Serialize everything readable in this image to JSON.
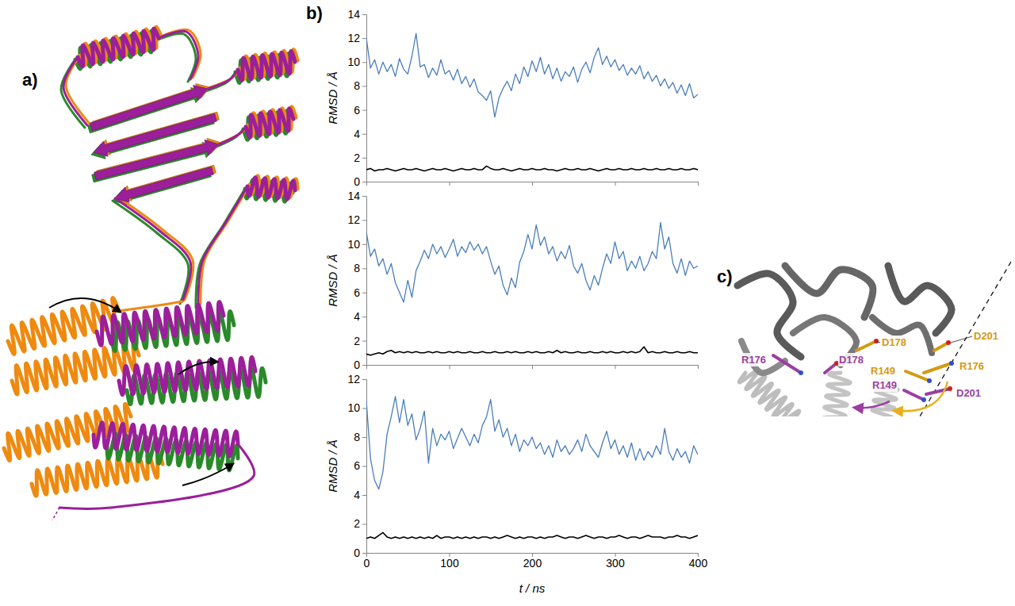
{
  "chart_data": [
    {
      "type": "line",
      "ylabel": "RMSD / Å",
      "x": [
        0,
        5,
        10,
        15,
        20,
        25,
        30,
        35,
        40,
        45,
        50,
        55,
        60,
        65,
        70,
        75,
        80,
        85,
        90,
        95,
        100,
        105,
        110,
        115,
        120,
        125,
        130,
        135,
        140,
        145,
        150,
        155,
        160,
        165,
        170,
        175,
        180,
        185,
        190,
        195,
        200,
        205,
        210,
        215,
        220,
        225,
        230,
        235,
        240,
        245,
        250,
        255,
        260,
        265,
        270,
        275,
        280,
        285,
        290,
        295,
        300,
        305,
        310,
        315,
        320,
        325,
        330,
        335,
        340,
        345,
        350,
        355,
        360,
        365,
        370,
        375,
        380,
        385,
        390,
        395,
        400
      ],
      "xlim": [
        0,
        400
      ],
      "xticks": [
        0,
        100,
        200,
        300,
        400
      ],
      "ylim": [
        0,
        14
      ],
      "yticks": [
        0,
        2,
        4,
        6,
        8,
        10,
        12,
        14
      ],
      "tick_labels": "y",
      "series": [
        {
          "color": "#4a7ebb",
          "values": [
            12,
            9.5,
            10.2,
            9.0,
            10.0,
            9.2,
            9.8,
            8.8,
            10.3,
            9.4,
            9.0,
            10.5,
            12.4,
            9.6,
            9.8,
            8.7,
            9.5,
            8.9,
            10.2,
            9.0,
            9.3,
            8.5,
            9.4,
            8.2,
            8.8,
            7.9,
            8.6,
            7.5,
            7.2,
            6.8,
            7.6,
            5.4,
            7.0,
            7.8,
            8.4,
            7.6,
            9.0,
            8.2,
            9.6,
            8.8,
            10.1,
            9.2,
            10.4,
            9.0,
            9.8,
            8.6,
            9.5,
            8.4,
            9.2,
            8.8,
            9.6,
            8.3,
            9.4,
            10.0,
            9.1,
            10.4,
            11.2,
            9.8,
            10.5,
            9.6,
            10.2,
            9.3,
            9.8,
            8.9,
            9.5,
            9.0,
            9.7,
            8.6,
            9.2,
            8.4,
            8.9,
            8.0,
            8.6,
            7.8,
            8.3,
            7.4,
            8.1,
            7.2,
            8.2,
            7.0,
            7.3
          ]
        },
        {
          "color": "#000000",
          "values": [
            1.0,
            1.1,
            0.9,
            1.0,
            1.0,
            1.1,
            1.0,
            0.9,
            1.0,
            1.1,
            1.0,
            1.0,
            1.1,
            1.0,
            0.9,
            1.0,
            1.1,
            1.0,
            1.0,
            1.1,
            1.0,
            0.9,
            1.0,
            1.1,
            1.0,
            1.0,
            1.1,
            1.0,
            1.0,
            1.3,
            1.1,
            1.0,
            1.0,
            1.1,
            1.0,
            0.9,
            1.0,
            1.1,
            1.0,
            1.0,
            1.1,
            1.0,
            1.0,
            1.1,
            1.0,
            1.0,
            0.9,
            1.0,
            1.1,
            1.0,
            1.0,
            1.1,
            1.0,
            1.0,
            1.1,
            1.0,
            0.9,
            1.0,
            1.1,
            1.0,
            1.0,
            1.1,
            1.0,
            1.0,
            1.1,
            1.0,
            1.0,
            1.1,
            1.0,
            1.0,
            1.1,
            1.0,
            1.0,
            1.1,
            1.0,
            1.0,
            1.1,
            1.0,
            1.0,
            1.1,
            1.0
          ]
        }
      ]
    },
    {
      "type": "line",
      "ylabel": "RMSD / Å",
      "x": [
        0,
        5,
        10,
        15,
        20,
        25,
        30,
        35,
        40,
        45,
        50,
        55,
        60,
        65,
        70,
        75,
        80,
        85,
        90,
        95,
        100,
        105,
        110,
        115,
        120,
        125,
        130,
        135,
        140,
        145,
        150,
        155,
        160,
        165,
        170,
        175,
        180,
        185,
        190,
        195,
        200,
        205,
        210,
        215,
        220,
        225,
        230,
        235,
        240,
        245,
        250,
        255,
        260,
        265,
        270,
        275,
        280,
        285,
        290,
        295,
        300,
        305,
        310,
        315,
        320,
        325,
        330,
        335,
        340,
        345,
        350,
        355,
        360,
        365,
        370,
        375,
        380,
        385,
        390,
        395,
        400
      ],
      "xlim": [
        0,
        400
      ],
      "xticks": [
        0,
        100,
        200,
        300,
        400
      ],
      "ylim": [
        0,
        14
      ],
      "yticks": [
        0,
        2,
        4,
        6,
        8,
        10,
        12,
        14
      ],
      "tick_labels": "y",
      "series": [
        {
          "color": "#4a7ebb",
          "values": [
            11.0,
            9.0,
            9.6,
            8.2,
            8.8,
            7.5,
            8.4,
            6.8,
            6.0,
            5.2,
            7.0,
            5.6,
            7.8,
            8.6,
            9.5,
            8.8,
            10.0,
            9.2,
            9.8,
            8.9,
            9.6,
            10.4,
            9.0,
            9.8,
            9.3,
            10.2,
            9.5,
            10.0,
            9.2,
            9.8,
            8.6,
            7.5,
            8.2,
            6.6,
            5.8,
            7.2,
            6.4,
            8.5,
            9.4,
            10.8,
            9.6,
            11.6,
            9.9,
            10.6,
            9.2,
            9.8,
            8.6,
            9.4,
            8.8,
            9.9,
            8.2,
            7.6,
            8.4,
            7.0,
            6.2,
            7.4,
            6.6,
            8.0,
            9.2,
            8.4,
            10.2,
            8.8,
            9.4,
            7.8,
            8.6,
            8.0,
            9.0,
            7.8,
            8.4,
            9.4,
            8.8,
            11.8,
            9.6,
            10.6,
            8.4,
            7.6,
            8.8,
            7.4,
            8.6,
            8.0,
            8.2
          ]
        },
        {
          "color": "#000000",
          "values": [
            0.9,
            0.8,
            0.9,
            1.0,
            0.9,
            1.1,
            1.2,
            1.0,
            1.1,
            1.0,
            1.1,
            1.0,
            1.1,
            1.0,
            1.0,
            1.1,
            1.0,
            1.1,
            1.0,
            1.0,
            1.1,
            1.0,
            1.1,
            1.0,
            1.0,
            1.1,
            1.0,
            1.0,
            1.1,
            1.0,
            1.0,
            1.1,
            1.0,
            1.0,
            1.1,
            1.0,
            1.1,
            1.0,
            1.0,
            1.1,
            1.0,
            1.1,
            1.0,
            1.0,
            1.1,
            1.0,
            1.2,
            1.0,
            1.1,
            1.0,
            1.0,
            1.1,
            1.0,
            1.0,
            1.1,
            1.0,
            1.0,
            1.1,
            1.0,
            1.1,
            1.0,
            1.0,
            1.1,
            1.0,
            1.1,
            1.0,
            1.1,
            1.5,
            1.0,
            1.1,
            1.0,
            1.0,
            1.1,
            1.0,
            1.0,
            1.1,
            1.0,
            1.0,
            1.1,
            1.0,
            1.0
          ]
        }
      ]
    },
    {
      "type": "line",
      "xlabel": "t / ns",
      "ylabel": "RMSD / Å",
      "x": [
        0,
        5,
        10,
        15,
        20,
        25,
        30,
        35,
        40,
        45,
        50,
        55,
        60,
        65,
        70,
        75,
        80,
        85,
        90,
        95,
        100,
        105,
        110,
        115,
        120,
        125,
        130,
        135,
        140,
        145,
        150,
        155,
        160,
        165,
        170,
        175,
        180,
        185,
        190,
        195,
        200,
        205,
        210,
        215,
        220,
        225,
        230,
        235,
        240,
        245,
        250,
        255,
        260,
        265,
        270,
        275,
        280,
        285,
        290,
        295,
        300,
        305,
        310,
        315,
        320,
        325,
        330,
        335,
        340,
        345,
        350,
        355,
        360,
        365,
        370,
        375,
        380,
        385,
        390,
        395,
        400
      ],
      "xlim": [
        0,
        400
      ],
      "xticks": [
        0,
        100,
        200,
        300,
        400
      ],
      "ylim": [
        0,
        12
      ],
      "yticks": [
        0,
        2,
        4,
        6,
        8,
        10,
        12
      ],
      "series": [
        {
          "color": "#4a7ebb",
          "values": [
            10.5,
            6.5,
            5.0,
            4.4,
            5.6,
            8.2,
            9.4,
            10.8,
            9.0,
            10.6,
            8.8,
            9.6,
            7.8,
            8.6,
            9.8,
            6.2,
            8.6,
            7.4,
            8.2,
            7.8,
            8.4,
            7.2,
            7.9,
            8.6,
            8.0,
            7.4,
            8.2,
            7.6,
            8.8,
            9.4,
            10.6,
            8.4,
            9.2,
            8.0,
            8.6,
            7.4,
            8.2,
            7.0,
            7.8,
            7.4,
            8.0,
            7.2,
            7.6,
            6.8,
            7.4,
            6.6,
            7.8,
            7.0,
            7.4,
            6.8,
            7.2,
            7.8,
            7.0,
            8.2,
            7.4,
            7.0,
            6.6,
            7.6,
            8.4,
            7.2,
            7.8,
            6.8,
            7.4,
            6.6,
            7.6,
            6.4,
            7.2,
            6.4,
            7.0,
            6.6,
            7.4,
            6.8,
            8.6,
            7.0,
            6.4,
            7.2,
            6.6,
            7.0,
            6.2,
            7.4,
            6.8
          ]
        },
        {
          "color": "#000000",
          "values": [
            1.0,
            1.1,
            1.0,
            1.2,
            1.4,
            1.1,
            1.0,
            1.1,
            1.0,
            1.1,
            1.0,
            1.1,
            1.0,
            1.1,
            1.0,
            1.1,
            1.0,
            1.2,
            1.0,
            1.1,
            1.1,
            1.0,
            1.1,
            1.0,
            1.1,
            1.0,
            1.1,
            1.0,
            1.1,
            1.1,
            1.0,
            1.1,
            1.0,
            1.1,
            1.2,
            1.1,
            1.0,
            1.1,
            1.0,
            1.1,
            1.1,
            1.0,
            1.1,
            1.0,
            1.1,
            1.1,
            1.2,
            1.1,
            1.0,
            1.1,
            1.1,
            1.0,
            1.1,
            1.2,
            1.1,
            1.0,
            1.1,
            1.1,
            1.0,
            1.1,
            1.1,
            1.2,
            1.1,
            1.0,
            1.1,
            1.1,
            1.0,
            1.1,
            1.2,
            1.1,
            1.1,
            1.1,
            1.0,
            1.1,
            1.1,
            1.2,
            1.1,
            1.1,
            1.0,
            1.1,
            1.2
          ]
        }
      ]
    }
  ],
  "panels": {
    "labels": [
      "a)",
      "b)",
      "c)"
    ]
  },
  "panel_c": {
    "labels": [
      {
        "text": "D201",
        "color": "#d49a12"
      },
      {
        "text": "R176",
        "color": "#d49a12"
      },
      {
        "text": "D201",
        "color": "#9b3fa0"
      },
      {
        "text": "D178",
        "color": "#d49a12"
      },
      {
        "text": "R176",
        "color": "#9b3fa0"
      },
      {
        "text": "D178",
        "color": "#9b3fa0"
      },
      {
        "text": "R149",
        "color": "#d49a12"
      },
      {
        "text": "R149",
        "color": "#9b3fa0"
      }
    ]
  }
}
